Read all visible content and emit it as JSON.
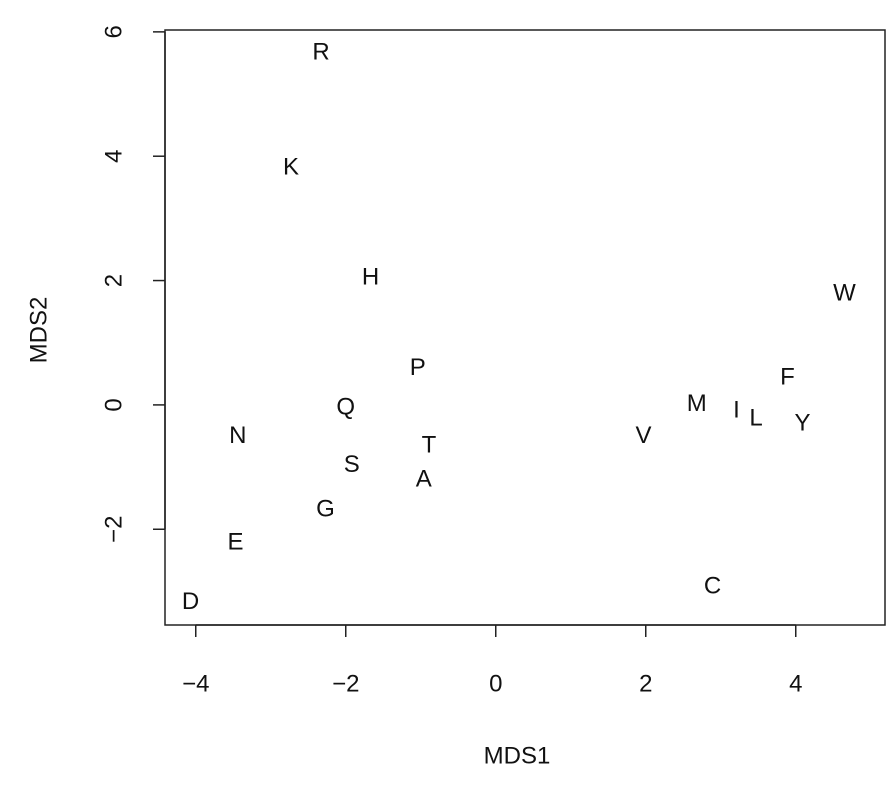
{
  "chart_data": {
    "type": "scatter",
    "x_label": "MDS1",
    "y_label": "MDS2",
    "labels": [
      "R",
      "K",
      "H",
      "P",
      "Q",
      "N",
      "T",
      "S",
      "A",
      "G",
      "E",
      "D",
      "V",
      "M",
      "I",
      "L",
      "Y",
      "F",
      "W",
      "C"
    ],
    "x": [
      -2.33,
      -2.73,
      -1.67,
      -1.04,
      -2.0,
      -3.44,
      -0.89,
      -1.92,
      -0.96,
      -2.27,
      -3.47,
      -4.07,
      1.97,
      2.68,
      3.21,
      3.47,
      4.09,
      3.89,
      4.65,
      2.89
    ],
    "y": [
      5.66,
      3.81,
      2.04,
      0.58,
      -0.05,
      -0.51,
      -0.66,
      -0.98,
      -1.21,
      -1.69,
      -2.22,
      -3.18,
      -0.51,
      0.0,
      -0.1,
      -0.23,
      -0.31,
      0.43,
      1.78,
      -2.93
    ],
    "color": "#000000",
    "xlim": [
      -4.41,
      5.19
    ],
    "ylim": [
      -3.54,
      6.03
    ],
    "xticks": [
      {
        "value": -4,
        "label": "−4"
      },
      {
        "value": -2,
        "label": "−2"
      },
      0,
      2,
      4
    ],
    "yticks": [
      {
        "value": -2,
        "label": "−2"
      },
      0,
      2,
      4,
      6
    ],
    "grid": false
  }
}
